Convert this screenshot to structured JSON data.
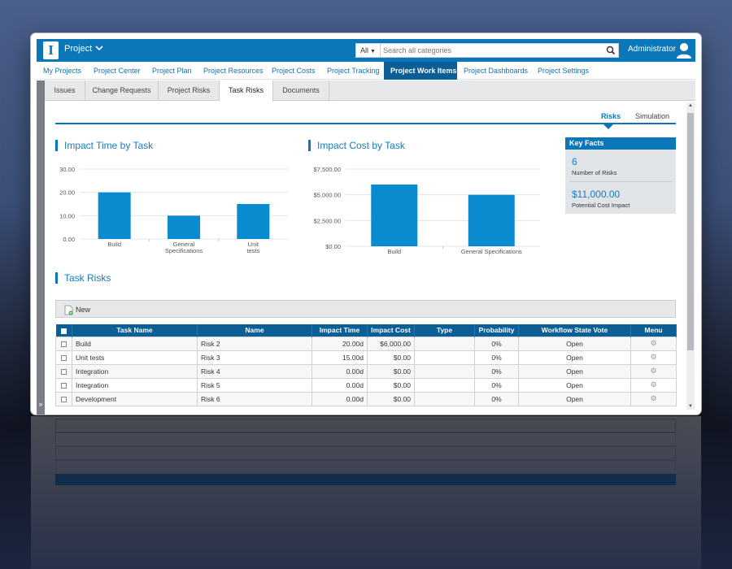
{
  "header": {
    "app_title": "Project",
    "search_category": "All",
    "search_placeholder": "Search all categories",
    "user_name": "Administrator"
  },
  "nav": [
    {
      "label": "My Projects"
    },
    {
      "label": "Project Center"
    },
    {
      "label": "Project Plan"
    },
    {
      "label": "Project Resources"
    },
    {
      "label": "Project Costs"
    },
    {
      "label": "Project Tracking"
    },
    {
      "label": "Project Work Items",
      "active": true
    },
    {
      "label": "Project Dashboards"
    },
    {
      "label": "Project Settings"
    }
  ],
  "tabs": [
    {
      "label": "Issues"
    },
    {
      "label": "Change Requests"
    },
    {
      "label": "Project Risks"
    },
    {
      "label": "Task Risks",
      "active": true
    },
    {
      "label": "Documents"
    }
  ],
  "view_toggle": {
    "risks": "Risks",
    "simulation": "Simulation"
  },
  "charts": {
    "time_title": "Impact Time by Task",
    "cost_title": "Impact Cost by Task"
  },
  "chart_data": [
    {
      "type": "bar",
      "title": "Impact Time by Task",
      "categories": [
        "Build",
        "General Specifications",
        "Unit tests"
      ],
      "values": [
        20,
        10,
        15
      ],
      "ylim": [
        0,
        30
      ],
      "yticks": [
        "0.00",
        "10.00",
        "20.00",
        "30.00"
      ],
      "grid": true,
      "color": "#0a8bd0"
    },
    {
      "type": "bar",
      "title": "Impact Cost by Task",
      "categories": [
        "Build",
        "General Specifications"
      ],
      "values": [
        6000,
        5000
      ],
      "ylim": [
        0,
        7500
      ],
      "yticks": [
        "$0.00",
        "$2,500.00",
        "$5,000.00",
        "$7,500.00"
      ],
      "grid": true,
      "color": "#0a8bd0"
    }
  ],
  "key_facts": {
    "title": "Key Facts",
    "risk_count": "6",
    "risk_count_label": "Number of Risks",
    "cost_value": "$11,000.00",
    "cost_label": "Potential Cost Impact"
  },
  "task_risks": {
    "title": "Task Risks",
    "new_label": "New",
    "columns": [
      "Task Name",
      "Name",
      "Impact Time",
      "Impact Cost",
      "Type",
      "Probability",
      "Workflow State Vote",
      "Menu"
    ],
    "rows": [
      {
        "task": "Build",
        "name": "Risk 2",
        "time": "20.00d",
        "cost": "$6,000.00",
        "type": "",
        "prob": "0%",
        "state": "Open"
      },
      {
        "task": "Unit tests",
        "name": "Risk 3",
        "time": "15.00d",
        "cost": "$0.00",
        "type": "",
        "prob": "0%",
        "state": "Open"
      },
      {
        "task": "Integration",
        "name": "Risk 4",
        "time": "0.00d",
        "cost": "$0.00",
        "type": "",
        "prob": "0%",
        "state": "Open"
      },
      {
        "task": "Integration",
        "name": "Risk 5",
        "time": "0.00d",
        "cost": "$0.00",
        "type": "",
        "prob": "0%",
        "state": "Open"
      },
      {
        "task": "Development",
        "name": "Risk 6",
        "time": "0.00d",
        "cost": "$0.00",
        "type": "",
        "prob": "0%",
        "state": "Open"
      }
    ]
  }
}
